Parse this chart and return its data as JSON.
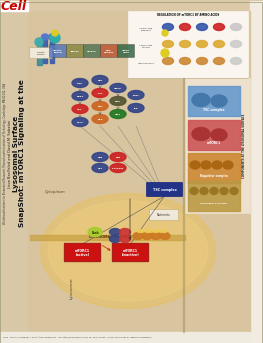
{
  "title_line1": "SnapShot: mTORC1 Signaling at the",
  "title_line2": "Lysosomal Surface",
  "authors": "Liron Bar-Peled and David M. Sabatini",
  "affiliation": "Whitehead Institute for Biomedical Research, Massachusetts Institute of Technology, Cambridge, MA 02142, USA",
  "footer_text": "1380   Cell 151, December 7, 2012 ©2012 Elsevier Inc.   DOI http://dx.doi.org/10.1016/j.cell.2012.11.838   See full-size version for legend and references.",
  "bg_color": "#dcc9a8",
  "main_area_color": "#d4b896",
  "panel_cream": "#f5ede0",
  "right_panel_bg": "#e8dcc8",
  "cell_red": "#cc0000",
  "white": "#ffffff",
  "footer_bg": "#f0ebe0",
  "inset_bg": "#faf5ee",
  "right_side_bg": "#e0d0b8",
  "lysosome_yellow": "#e8c060",
  "lysosome_fill": "#f0d080",
  "lysosome_border": "#c8a040",
  "blue_ellipse_dark": "#1a2d6b",
  "blue_ellipse_mid": "#3355aa",
  "blue_ellipse_light": "#6688cc",
  "red_ellipse_dark": "#8b1111",
  "red_ellipse_mid": "#cc2222",
  "dark_gray_ellipse": "#555566",
  "brown_ellipse": "#8b4513",
  "orange_ellipse": "#cc6622",
  "teal_ellipse": "#227788",
  "green_ellipse": "#336633",
  "mtorc1_red": "#cc1111",
  "tsc_blue": "#223399",
  "blue_rect": "#2a4f80",
  "red_rect": "#aa2020",
  "orange_rect": "#bb6611",
  "tan_rect": "#cc9933",
  "components_header": "COMPONENTS AT THE LYSOSOMAL SURFACE",
  "inset_header": "REGULATION OF mTORC1 BY AMINO ACIDS"
}
